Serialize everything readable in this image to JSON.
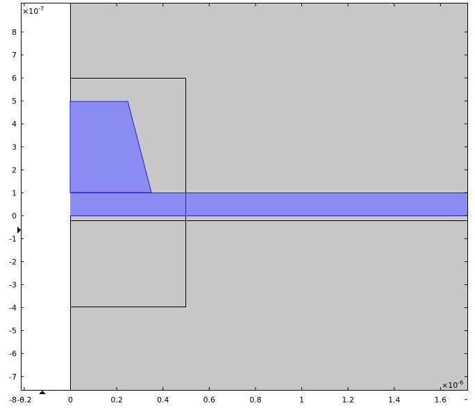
{
  "graphics": {
    "y_exponent_label": "×10",
    "y_exponent_power": "-7",
    "x_exponent_label": "×10",
    "x_exponent_power": "-6",
    "x_ticks": [
      "-0.2",
      "0",
      "0.2",
      "0.4",
      "0.6",
      "0.8",
      "1",
      "1.2",
      "1.4",
      "1.6"
    ],
    "y_ticks": [
      "8",
      "7",
      "6",
      "5",
      "4",
      "3",
      "2",
      "1",
      "0",
      "-1",
      "-2",
      "-3",
      "-4",
      "-5",
      "-6",
      "-7",
      "-8"
    ],
    "colors": {
      "background": "#ffffff",
      "domain_fill": "#c8c8c8",
      "selection_fill": "#8c8cf2",
      "selection_stroke": "#1a1aff",
      "boundary_stroke": "#000000"
    },
    "icons": [
      "marker-triangle-icon",
      "marker-triangle-icon"
    ]
  }
}
